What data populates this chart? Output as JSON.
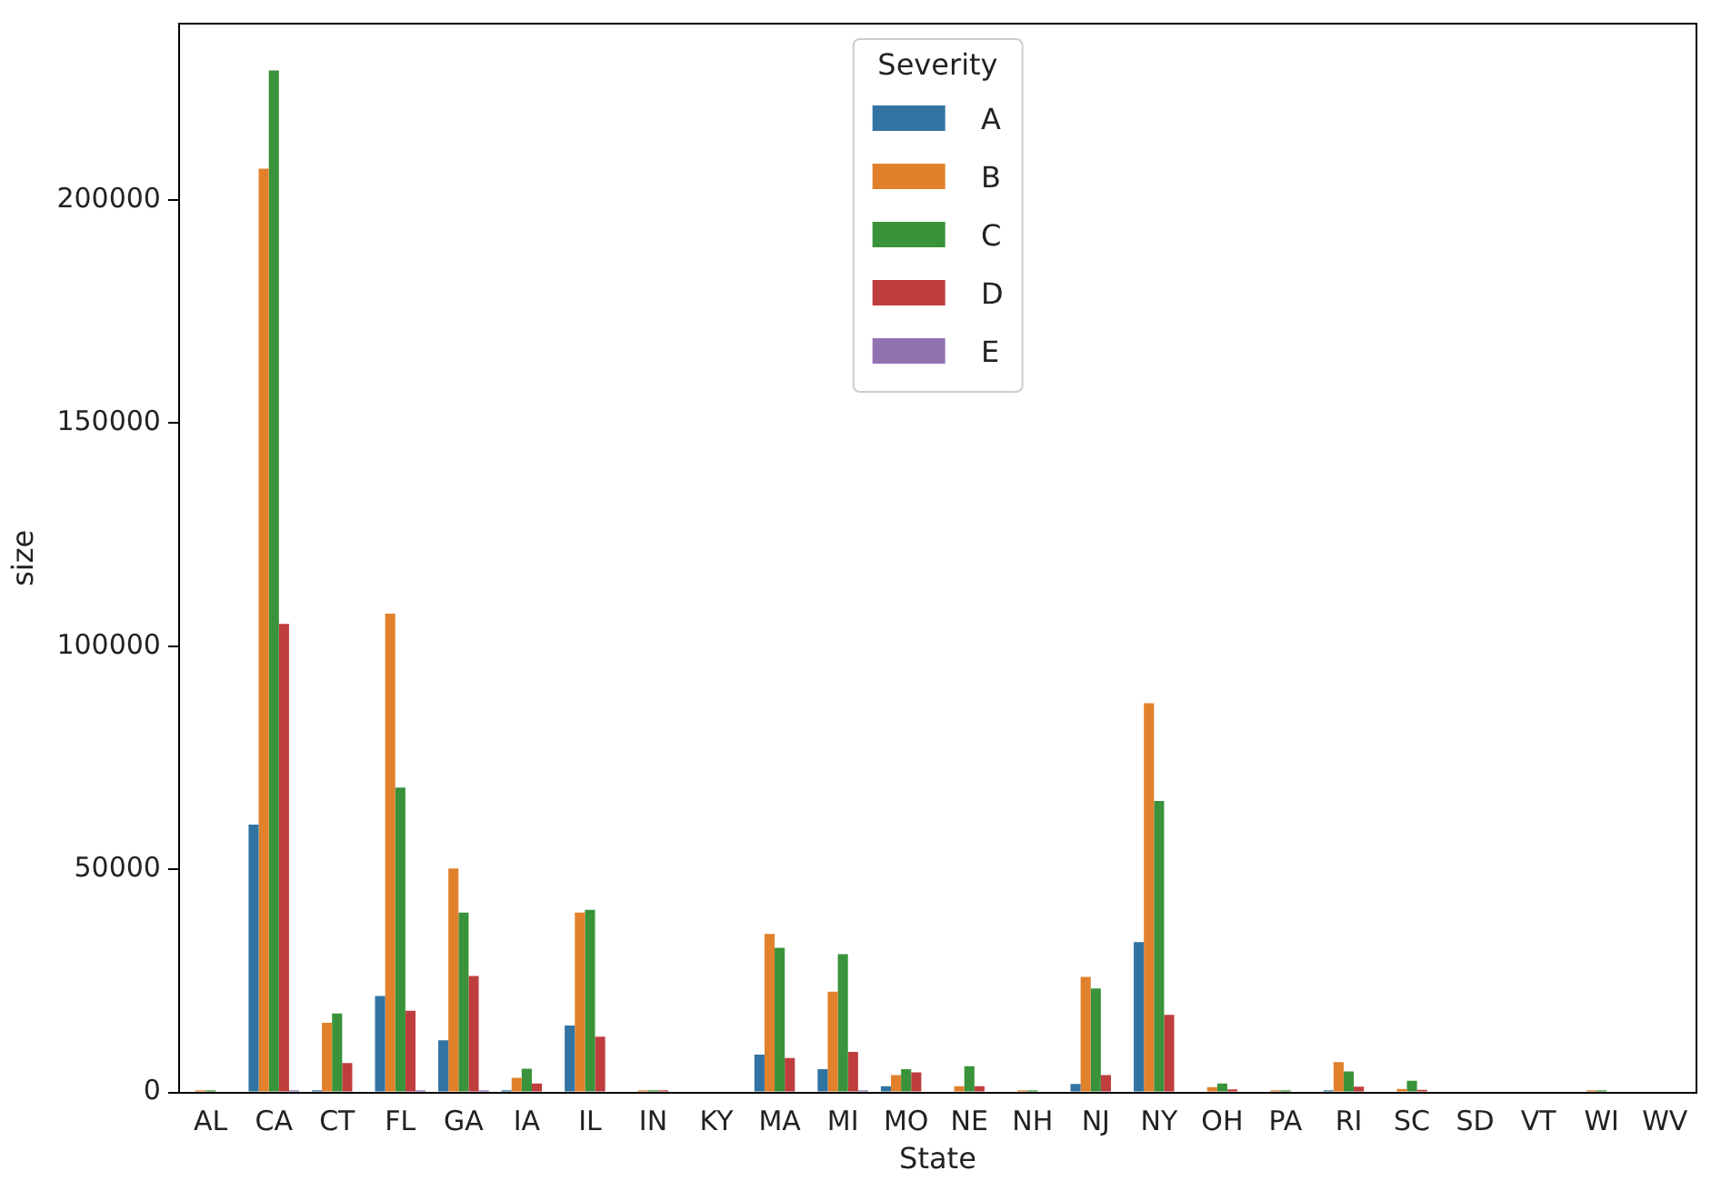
{
  "chart_data": {
    "type": "bar",
    "xlabel": "State",
    "ylabel": "size",
    "legend_title": "Severity",
    "legend": "top",
    "grid": false,
    "categories": [
      "AL",
      "CA",
      "CT",
      "FL",
      "GA",
      "IA",
      "IL",
      "IN",
      "KY",
      "MA",
      "MI",
      "MO",
      "NE",
      "NH",
      "NJ",
      "NY",
      "OH",
      "PA",
      "RI",
      "SC",
      "SD",
      "VT",
      "WI",
      "WV"
    ],
    "ylim": [
      0,
      239500
    ],
    "yticks": [
      0,
      50000,
      100000,
      150000,
      200000
    ],
    "series": [
      {
        "name": "A",
        "color": "#3274a1",
        "values": [
          0,
          60000,
          500,
          21600,
          11700,
          500,
          15000,
          0,
          0,
          8500,
          5200,
          1400,
          0,
          0,
          1900,
          33700,
          0,
          0,
          500,
          0,
          0,
          0,
          0,
          0
        ]
      },
      {
        "name": "B",
        "color": "#e1812c",
        "values": [
          500,
          207000,
          15600,
          107300,
          50200,
          3300,
          40300,
          500,
          0,
          35500,
          22600,
          3900,
          1400,
          500,
          25900,
          87200,
          1200,
          500,
          6800,
          800,
          0,
          0,
          500,
          0
        ]
      },
      {
        "name": "C",
        "color": "#3a923a",
        "values": [
          500,
          229000,
          17700,
          68300,
          40300,
          5300,
          40900,
          500,
          0,
          32400,
          31000,
          5200,
          5900,
          500,
          23300,
          65300,
          2000,
          500,
          4700,
          2600,
          0,
          0,
          500,
          0
        ]
      },
      {
        "name": "D",
        "color": "#c03d3e",
        "values": [
          0,
          105000,
          6600,
          18300,
          26100,
          2000,
          12500,
          500,
          0,
          7700,
          9100,
          4500,
          1400,
          0,
          3900,
          17400,
          700,
          0,
          1300,
          600,
          0,
          0,
          0,
          0
        ]
      },
      {
        "name": "E",
        "color": "#9372b2",
        "values": [
          0,
          500,
          0,
          500,
          500,
          0,
          0,
          0,
          0,
          0,
          500,
          0,
          0,
          0,
          0,
          0,
          0,
          0,
          0,
          0,
          0,
          0,
          0,
          0
        ]
      }
    ]
  }
}
